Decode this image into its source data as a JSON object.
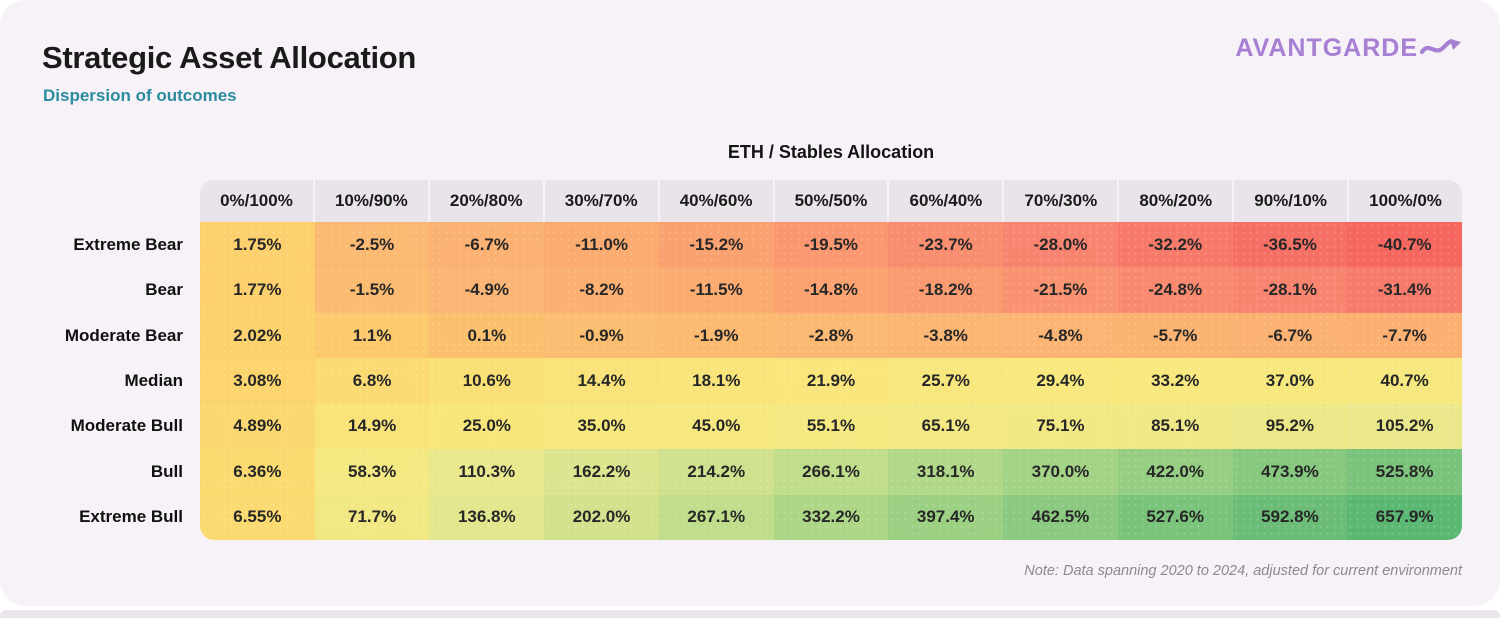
{
  "page": {
    "background_color": "#FFFFFF",
    "card_color": "#F7F1F8",
    "bottom_strip_color": "#EBE5EC",
    "title": "Strategic Asset Allocation",
    "subtitle": "Dispersion of outcomes",
    "subtitle_color": "#2B8C9E",
    "logo": {
      "text": "AVANTGARDE",
      "color": "#A77FD3",
      "icon": "swoosh-arrow-icon"
    },
    "note": "Note: Data spanning 2020 to 2024, adjusted for current environment",
    "note_color": "#8C8891"
  },
  "chart_data": {
    "type": "heatmap",
    "title": "Strategic Asset Allocation",
    "subtitle": "Dispersion of outcomes",
    "column_group_label": "ETH / Stables Allocation",
    "columns": [
      "0%/100%",
      "10%/90%",
      "20%/80%",
      "30%/70%",
      "40%/60%",
      "50%/50%",
      "60%/40%",
      "70%/30%",
      "80%/20%",
      "90%/10%",
      "100%/0%"
    ],
    "rows": [
      {
        "label": "Extreme Bear",
        "values": [
          "1.75%",
          "-2.5%",
          "-6.7%",
          "-11.0%",
          "-15.2%",
          "-19.5%",
          "-23.7%",
          "-28.0%",
          "-32.2%",
          "-36.5%",
          "-40.7%"
        ]
      },
      {
        "label": "Bear",
        "values": [
          "1.77%",
          "-1.5%",
          "-4.9%",
          "-8.2%",
          "-11.5%",
          "-14.8%",
          "-18.2%",
          "-21.5%",
          "-24.8%",
          "-28.1%",
          "-31.4%"
        ]
      },
      {
        "label": "Moderate Bear",
        "values": [
          "2.02%",
          "1.1%",
          "0.1%",
          "-0.9%",
          "-1.9%",
          "-2.8%",
          "-3.8%",
          "-4.8%",
          "-5.7%",
          "-6.7%",
          "-7.7%"
        ]
      },
      {
        "label": "Median",
        "values": [
          "3.08%",
          "6.8%",
          "10.6%",
          "14.4%",
          "18.1%",
          "21.9%",
          "25.7%",
          "29.4%",
          "33.2%",
          "37.0%",
          "40.7%"
        ]
      },
      {
        "label": "Moderate Bull",
        "values": [
          "4.89%",
          "14.9%",
          "25.0%",
          "35.0%",
          "45.0%",
          "55.1%",
          "65.1%",
          "75.1%",
          "85.1%",
          "95.2%",
          "105.2%"
        ]
      },
      {
        "label": "Bull",
        "values": [
          "6.36%",
          "58.3%",
          "110.3%",
          "162.2%",
          "214.2%",
          "266.1%",
          "318.1%",
          "370.0%",
          "422.0%",
          "473.9%",
          "525.8%"
        ]
      },
      {
        "label": "Extreme Bull",
        "values": [
          "6.55%",
          "71.7%",
          "136.8%",
          "202.0%",
          "267.1%",
          "332.2%",
          "397.4%",
          "462.5%",
          "527.6%",
          "592.8%",
          "657.9%"
        ]
      }
    ],
    "header_band_color": "#E9E4EA",
    "cell_text_color": "#272727",
    "color_scale": {
      "description": "piecewise-linear mapping of cell value (%) to fill color",
      "stops": [
        [
          -41,
          "#F5655F"
        ],
        [
          -28,
          "#F8836F"
        ],
        [
          -19,
          "#FA9870"
        ],
        [
          -11,
          "#FBAB70"
        ],
        [
          -4,
          "#FBB573"
        ],
        [
          0,
          "#FBBF6E"
        ],
        [
          2,
          "#FCD26D"
        ],
        [
          7,
          "#FBDB71"
        ],
        [
          15,
          "#F9E378"
        ],
        [
          30,
          "#F8E87D"
        ],
        [
          75,
          "#F1E883"
        ],
        [
          110,
          "#E9E88C"
        ],
        [
          160,
          "#DCE58E"
        ],
        [
          215,
          "#CFE18C"
        ],
        [
          265,
          "#C0DD8A"
        ],
        [
          320,
          "#B0D888"
        ],
        [
          370,
          "#A3D385"
        ],
        [
          422,
          "#95CE82"
        ],
        [
          475,
          "#86C87E"
        ],
        [
          527,
          "#7AC37B"
        ],
        [
          593,
          "#6ABC77"
        ],
        [
          658,
          "#5AB873"
        ]
      ]
    },
    "note": "Note: Data spanning 2020 to 2024, adjusted for current environment"
  }
}
